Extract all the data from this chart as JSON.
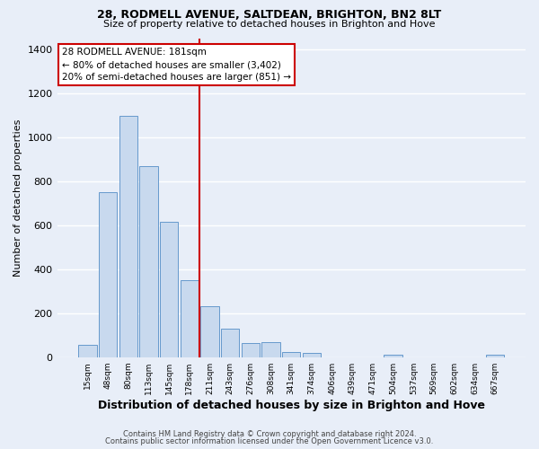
{
  "title1": "28, RODMELL AVENUE, SALTDEAN, BRIGHTON, BN2 8LT",
  "title2": "Size of property relative to detached houses in Brighton and Hove",
  "xlabel": "Distribution of detached houses by size in Brighton and Hove",
  "ylabel": "Number of detached properties",
  "bar_labels": [
    "15sqm",
    "48sqm",
    "80sqm",
    "113sqm",
    "145sqm",
    "178sqm",
    "211sqm",
    "243sqm",
    "276sqm",
    "308sqm",
    "341sqm",
    "374sqm",
    "406sqm",
    "439sqm",
    "471sqm",
    "504sqm",
    "537sqm",
    "569sqm",
    "602sqm",
    "634sqm",
    "667sqm"
  ],
  "bar_heights": [
    55,
    750,
    1095,
    870,
    615,
    350,
    230,
    130,
    65,
    70,
    25,
    20,
    0,
    0,
    0,
    10,
    0,
    0,
    0,
    0,
    10
  ],
  "bar_color": "#c8d9ee",
  "bar_edge_color": "#6699cc",
  "vline_position": 5.5,
  "vline_color": "#cc0000",
  "ylim": [
    0,
    1450
  ],
  "yticks": [
    0,
    200,
    400,
    600,
    800,
    1000,
    1200,
    1400
  ],
  "annotation_title": "28 RODMELL AVENUE: 181sqm",
  "annotation_line1": "← 80% of detached houses are smaller (3,402)",
  "annotation_line2": "20% of semi-detached houses are larger (851) →",
  "annotation_box_facecolor": "#ffffff",
  "annotation_box_edgecolor": "#cc0000",
  "footer1": "Contains HM Land Registry data © Crown copyright and database right 2024.",
  "footer2": "Contains public sector information licensed under the Open Government Licence v3.0.",
  "background_color": "#e8eef8",
  "grid_color": "#ffffff",
  "title1_fontsize": 9,
  "title2_fontsize": 8
}
